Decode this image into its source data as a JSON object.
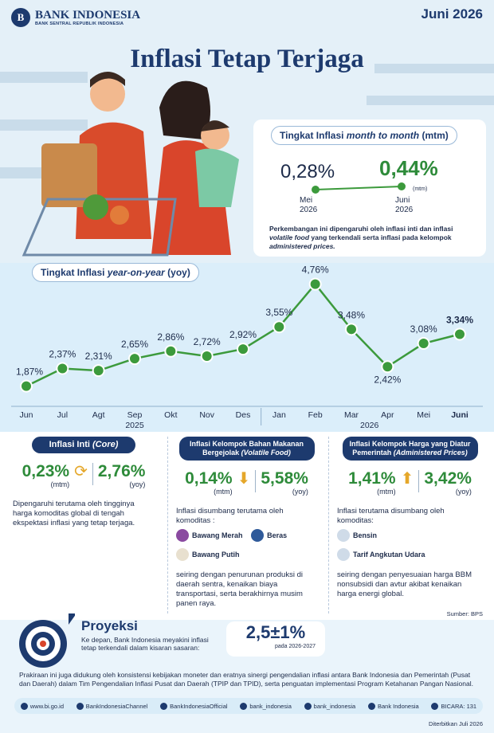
{
  "header": {
    "brand": "BANK INDONESIA",
    "brand_sub": "BANK SENTRAL REPUBLIK INDONESIA",
    "date": "Juni 2026",
    "title": "Inflasi Tetap Terjaga"
  },
  "mtm": {
    "title": [
      "Tingkat Inflasi ",
      "month to month",
      " (mtm)"
    ],
    "from": {
      "value": "0,28%",
      "month": "Mei",
      "year": "2026"
    },
    "to": {
      "value": "0,44%",
      "unit": "(mtm)",
      "month": "Juni",
      "year": "2026"
    },
    "note": [
      "Perkembangan ini dipengaruhi oleh inflasi inti dan inflasi ",
      "volatile food",
      " yang terkendali serta inflasi pada kelompok ",
      "administered prices."
    ]
  },
  "yoy": {
    "type": "line",
    "title": [
      "Tingkat Inflasi ",
      "year-on-year",
      " (yoy)"
    ],
    "categories": [
      "Jun",
      "Jul",
      "Agt",
      "Sep",
      "Okt",
      "Nov",
      "Des",
      "Jan",
      "Feb",
      "Mar",
      "Apr",
      "Mei",
      "Juni"
    ],
    "years": [
      "2025",
      "2026"
    ],
    "values": [
      1.87,
      2.37,
      2.31,
      2.65,
      2.86,
      2.72,
      2.92,
      3.55,
      4.76,
      3.48,
      2.42,
      3.08,
      3.34
    ],
    "value_labels": [
      "1,87%",
      "2,37%",
      "2,31%",
      "2,65%",
      "2,86%",
      "2,72%",
      "2,92%",
      "3,55%",
      "4,76%",
      "3,48%",
      "2,42%",
      "3,08%",
      "3,34%"
    ],
    "color": "#3c9a3c",
    "ylim": [
      1.5,
      5
    ]
  },
  "cards": [
    {
      "title": [
        "Inflasi Inti ",
        "(Core)"
      ],
      "mtm": "0,23%",
      "mtm_label": "(mtm)",
      "yoy": "2,76%",
      "yoy_label": "(yoy)",
      "text": "Dipengaruhi terutama oleh tingginya harga komoditas global di tengah ekspektasi inflasi yang tetap terjaga."
    },
    {
      "title": [
        "Inflasi Kelompok Bahan Makanan Bergejolak ",
        "(Volatile Food)"
      ],
      "mtm": "0,14%",
      "mtm_label": "(mtm)",
      "yoy": "5,58%",
      "yoy_label": "(yoy)",
      "intro": "Inflasi disumbang terutama oleh komoditas :",
      "items": [
        "Bawang Merah",
        "Beras",
        "Bawang Putih"
      ],
      "text": "seiring dengan penurunan produksi di daerah sentra, kenaikan biaya transportasi, serta berakhirnya musim panen raya."
    },
    {
      "title": [
        "Inflasi Kelompok Harga yang Diatur Pemerintah ",
        "(Administered Prices)"
      ],
      "mtm": "1,41%",
      "mtm_label": "(mtm)",
      "yoy": "3,42%",
      "yoy_label": "(yoy)",
      "intro": "Inflasi terutama disumbang oleh komoditas:",
      "items": [
        "Bensin",
        "Tarif Angkutan Udara"
      ],
      "text": "seiring dengan penyesuaian harga BBM nonsubsidi dan avtur akibat kenaikan harga energi global."
    }
  ],
  "source": "Sumber: BPS",
  "projection": {
    "title": "Proyeksi",
    "text": "Ke depan, Bank Indonesia meyakini inflasi tetap terkendali dalam kisaran sasaran:",
    "value": "2,5±1%",
    "period": "pada 2026-2027"
  },
  "footer": {
    "text": "Prakiraan ini juga didukung oleh konsistensi kebijakan moneter dan eratnya sinergi pengendalian inflasi antara Bank Indonesia dan Pemerintah (Pusat dan Daerah) dalam Tim Pengendalian Inflasi Pusat dan Daerah (TPIP dan TPID), serta penguatan implementasi Program Ketahanan Pangan Nasional.",
    "socials": [
      "www.bi.go.id",
      "BankIndonesiaChannel",
      "BankIndonesiaOfficial",
      "bank_indonesia",
      "bank_indonesia",
      "Bank Indonesia",
      "BICARA: 131"
    ],
    "published": "Diterbitkan Juli 2026"
  }
}
